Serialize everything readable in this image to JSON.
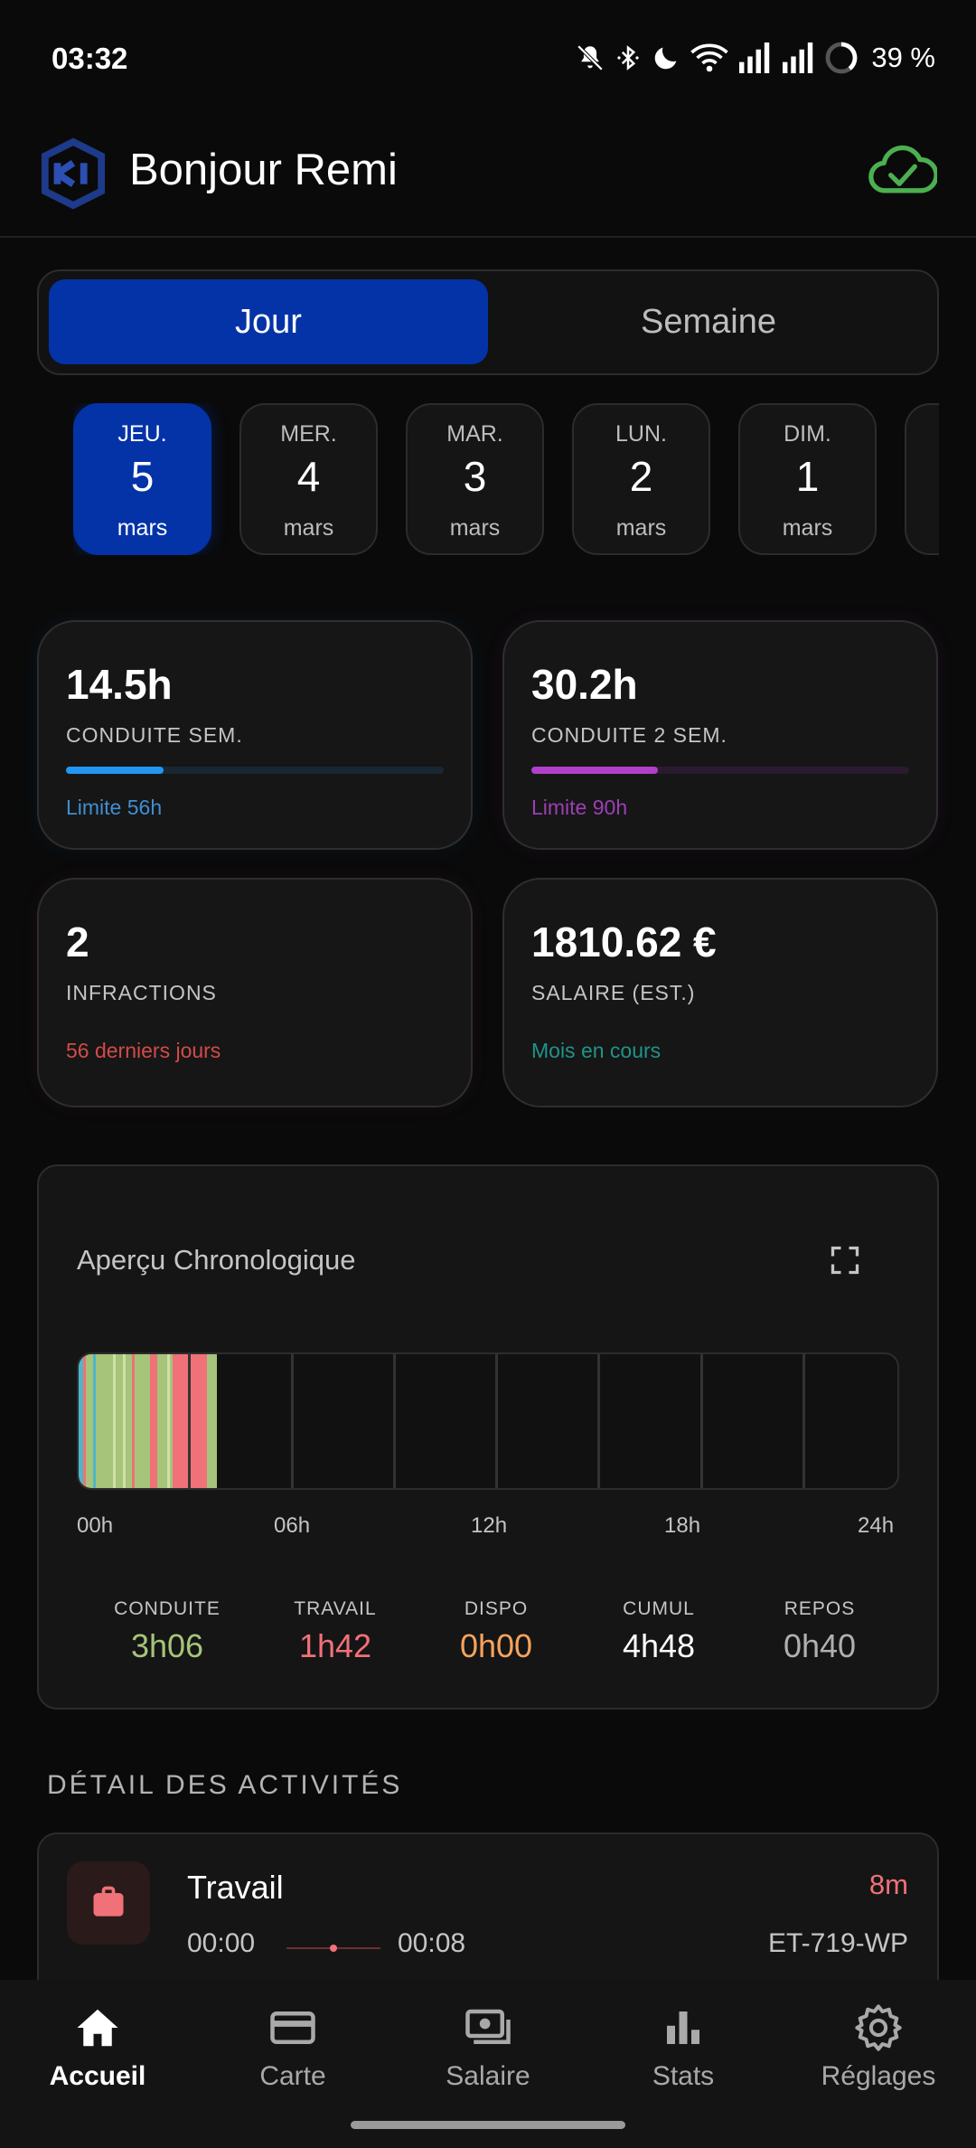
{
  "status_bar": {
    "time": "03:32",
    "battery": "39 %",
    "icons": [
      "silent-bell-icon",
      "bluetooth-icon",
      "moon-icon",
      "wifi-icon",
      "signal-icon",
      "signal-icon",
      "battery-ring-icon"
    ]
  },
  "header": {
    "greeting": "Bonjour Remi",
    "logo": "app-logo",
    "sync_icon": "cloud-check-icon"
  },
  "toggle": {
    "day": "Jour",
    "week": "Semaine",
    "selected": "Jour"
  },
  "dates": [
    {
      "dow": "JEU.",
      "day": "5",
      "month": "mars",
      "selected": true
    },
    {
      "dow": "MER.",
      "day": "4",
      "month": "mars",
      "selected": false
    },
    {
      "dow": "MAR.",
      "day": "3",
      "month": "mars",
      "selected": false
    },
    {
      "dow": "LUN.",
      "day": "2",
      "month": "mars",
      "selected": false
    },
    {
      "dow": "DIM.",
      "day": "1",
      "month": "mars",
      "selected": false
    }
  ],
  "stats": {
    "weekly_driving": {
      "value": "14.5h",
      "label": "CONDUITE SEM.",
      "sub": "Limite 56h",
      "progress": 0.259
    },
    "biweekly_driving": {
      "value": "30.2h",
      "label": "CONDUITE 2 SEM.",
      "sub": "Limite 90h",
      "progress": 0.336
    },
    "infractions": {
      "value": "2",
      "label": "INFRACTIONS",
      "sub": "56 derniers jours"
    },
    "salary": {
      "value": "1810.62 €",
      "label": "SALAIRE (EST.)",
      "sub": "Mois en cours"
    }
  },
  "colors": {
    "primary": "#0433a8",
    "driving_blue": "#2196f3",
    "driving_2w_purple": "#b03fc9",
    "infractions_red": "#d9534f",
    "salary_teal": "#26a69a",
    "conduite": "#a6c47a",
    "travail": "#f07178",
    "dispo": "#f6a35c",
    "repos": "#4fb6c9"
  },
  "chrono": {
    "title": "Aperçu Chronologique",
    "hours": [
      "00h",
      "06h",
      "12h",
      "18h",
      "24h"
    ],
    "segments": [
      {
        "start": 0.0,
        "end": 0.12,
        "kind": "repos"
      },
      {
        "start": 0.12,
        "end": 0.22,
        "kind": "travail"
      },
      {
        "start": 0.22,
        "end": 0.42,
        "kind": "conduite"
      },
      {
        "start": 0.42,
        "end": 0.5,
        "kind": "repos"
      },
      {
        "start": 0.5,
        "end": 1.55,
        "kind": "conduite"
      },
      {
        "start": 1.55,
        "end": 1.65,
        "kind": "travail"
      },
      {
        "start": 1.65,
        "end": 1.85,
        "kind": "conduite"
      },
      {
        "start": 1.85,
        "end": 1.95,
        "kind": "conduite"
      },
      {
        "start": 1.95,
        "end": 2.1,
        "kind": "conduite"
      },
      {
        "start": 2.1,
        "end": 2.3,
        "kind": "travail"
      },
      {
        "start": 2.3,
        "end": 2.75,
        "kind": "conduite"
      },
      {
        "start": 2.75,
        "end": 3.75,
        "kind": "travail"
      },
      {
        "start": 3.75,
        "end": 4.05,
        "kind": "conduite"
      }
    ],
    "totals": [
      {
        "label": "CONDUITE",
        "value": "3h06",
        "color": "#a6c47a"
      },
      {
        "label": "TRAVAIL",
        "value": "1h42",
        "color": "#f07178"
      },
      {
        "label": "DISPO",
        "value": "0h00",
        "color": "#f6a35c"
      },
      {
        "label": "CUMUL",
        "value": "4h48",
        "color": "#ffffff"
      },
      {
        "label": "REPOS",
        "value": "0h40",
        "color": "#b0b0b0"
      }
    ]
  },
  "details": {
    "title": "DÉTAIL DES ACTIVITÉS",
    "activities": [
      {
        "name": "Travail",
        "duration": "8m",
        "start": "00:00",
        "end": "00:08",
        "plate": "ET-719-WP",
        "icon": "briefcase-icon"
      }
    ]
  },
  "nav": [
    {
      "label": "Accueil",
      "icon": "home-icon",
      "active": true
    },
    {
      "label": "Carte",
      "icon": "card-icon",
      "active": false
    },
    {
      "label": "Salaire",
      "icon": "money-icon",
      "active": false
    },
    {
      "label": "Stats",
      "icon": "bar-chart-icon",
      "active": false
    },
    {
      "label": "Réglages",
      "icon": "gear-icon",
      "active": false
    }
  ]
}
